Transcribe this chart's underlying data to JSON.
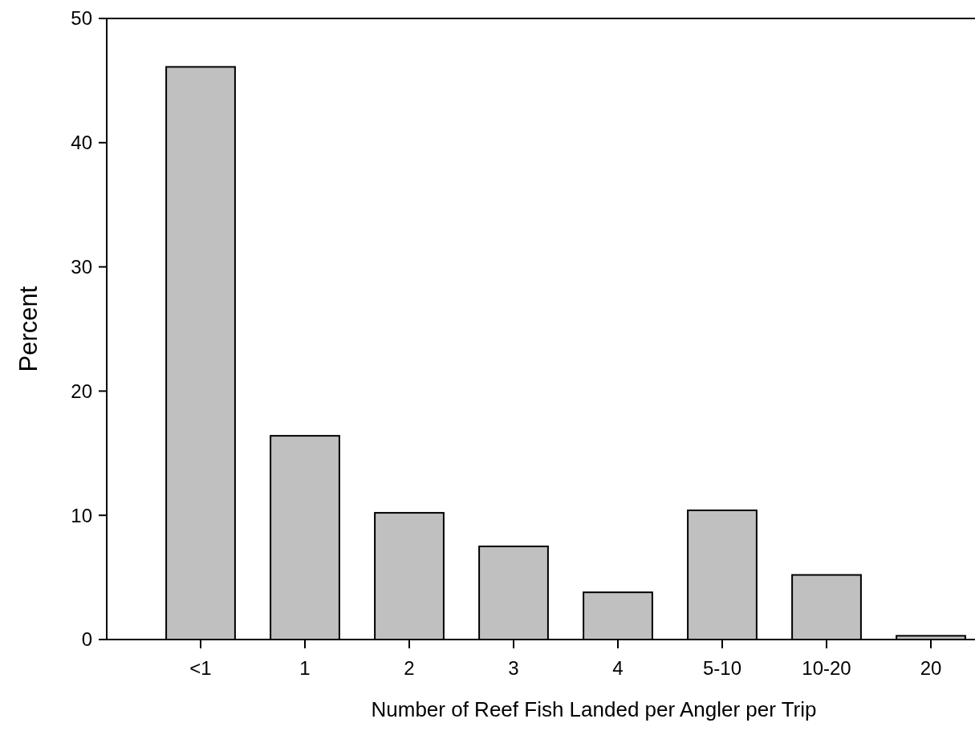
{
  "chart_data": {
    "type": "bar",
    "xlabel": "Number of Reef Fish Landed per Angler per Trip",
    "ylabel": "Percent",
    "categories": [
      "<1",
      "1",
      "2",
      "3",
      "4",
      "5-10",
      "10-20",
      "20"
    ],
    "values": [
      46.1,
      16.4,
      10.2,
      7.5,
      3.8,
      10.4,
      5.2,
      0.3
    ],
    "color": "#c0c0c0",
    "ylim": [
      0,
      50
    ],
    "yticks": [
      0,
      10,
      20,
      30,
      40,
      50
    ]
  }
}
